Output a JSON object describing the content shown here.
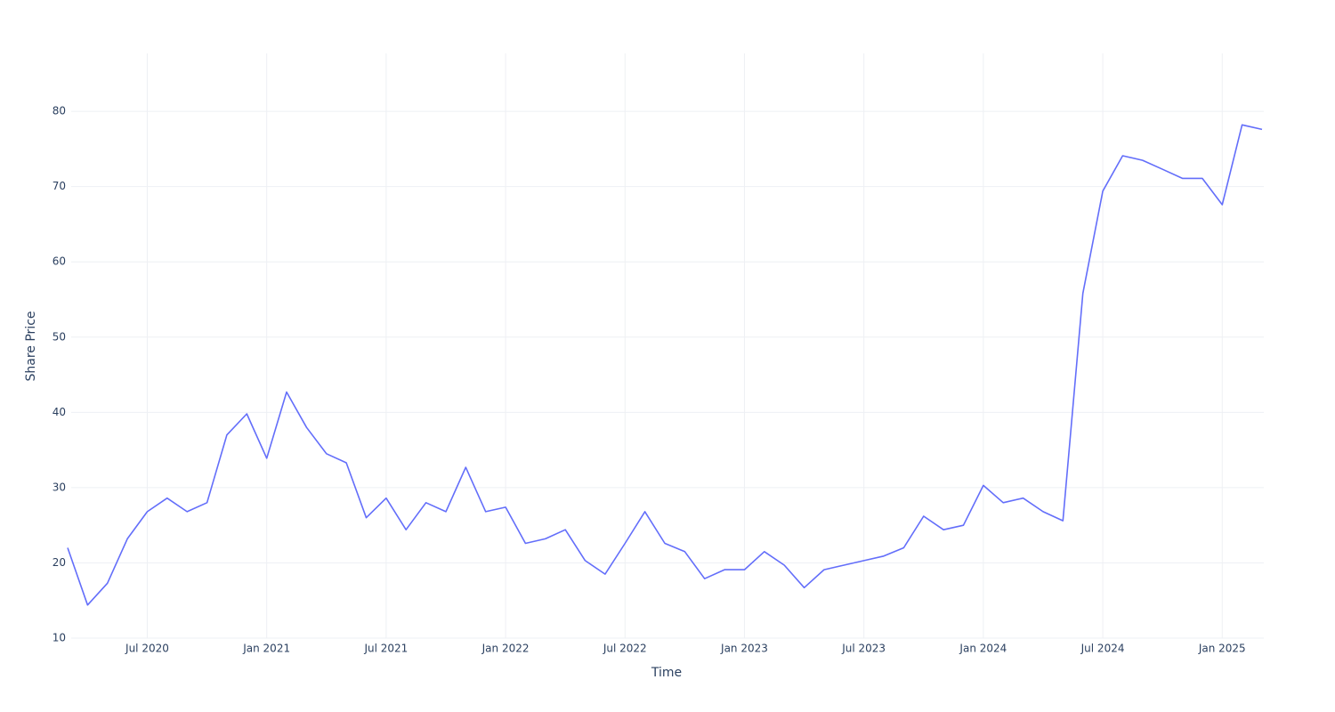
{
  "chart_data": {
    "type": "line",
    "x_label": "Time",
    "y_label": "Share Price",
    "x": [
      "2020-03",
      "2020-04",
      "2020-05",
      "2020-06",
      "2020-07",
      "2020-08",
      "2020-09",
      "2020-10",
      "2020-11",
      "2020-12",
      "2021-01",
      "2021-02",
      "2021-03",
      "2021-04",
      "2021-05",
      "2021-06",
      "2021-07",
      "2021-08",
      "2021-09",
      "2021-10",
      "2021-11",
      "2021-12",
      "2022-01",
      "2022-02",
      "2022-03",
      "2022-04",
      "2022-05",
      "2022-06",
      "2022-07",
      "2022-08",
      "2022-09",
      "2022-10",
      "2022-11",
      "2022-12",
      "2023-01",
      "2023-02",
      "2023-03",
      "2023-04",
      "2023-05",
      "2023-06",
      "2023-07",
      "2023-08",
      "2023-09",
      "2023-10",
      "2023-11",
      "2023-12",
      "2024-01",
      "2024-02",
      "2024-03",
      "2024-04",
      "2024-05",
      "2024-06",
      "2024-07",
      "2024-08",
      "2024-09",
      "2024-10",
      "2024-11",
      "2024-12",
      "2025-01",
      "2025-02",
      "2025-03"
    ],
    "series": [
      {
        "name": "Share Price",
        "color": "#636efa",
        "values": [
          22,
          14.4,
          17.3,
          23.2,
          26.8,
          28.6,
          26.8,
          28,
          37,
          39.8,
          33.9,
          42.7,
          38,
          34.5,
          33.3,
          26,
          28.6,
          24.4,
          28,
          26.8,
          32.7,
          26.8,
          27.4,
          22.6,
          23.2,
          24.4,
          20.3,
          18.5,
          22.6,
          26.8,
          22.6,
          21.5,
          17.9,
          19.1,
          19.1,
          21.5,
          19.7,
          16.7,
          19.1,
          19.7,
          20.3,
          20.9,
          22,
          26.2,
          24.4,
          25,
          30.3,
          28,
          28.6,
          26.8,
          25.6,
          55.8,
          69.4,
          74.1,
          73.5,
          72.3,
          71.1,
          71.1,
          67.6,
          78.2,
          77.6
        ]
      }
    ],
    "xlim": [
      "2020-03",
      "2025-03"
    ],
    "xticks": [
      {
        "value": "2020-07",
        "label": "Jul 2020"
      },
      {
        "value": "2021-01",
        "label": "Jan 2021"
      },
      {
        "value": "2021-07",
        "label": "Jul 2021"
      },
      {
        "value": "2022-01",
        "label": "Jan 2022"
      },
      {
        "value": "2022-07",
        "label": "Jul 2022"
      },
      {
        "value": "2023-01",
        "label": "Jan 2023"
      },
      {
        "value": "2023-07",
        "label": "Jul 2023"
      },
      {
        "value": "2024-01",
        "label": "Jan 2024"
      },
      {
        "value": "2024-07",
        "label": "Jul 2024"
      },
      {
        "value": "2025-01",
        "label": "Jan 2025"
      }
    ],
    "ylim": [
      10,
      87.7
    ],
    "yticks": [
      10,
      20,
      30,
      40,
      50,
      60,
      70,
      80
    ],
    "grid": true
  }
}
